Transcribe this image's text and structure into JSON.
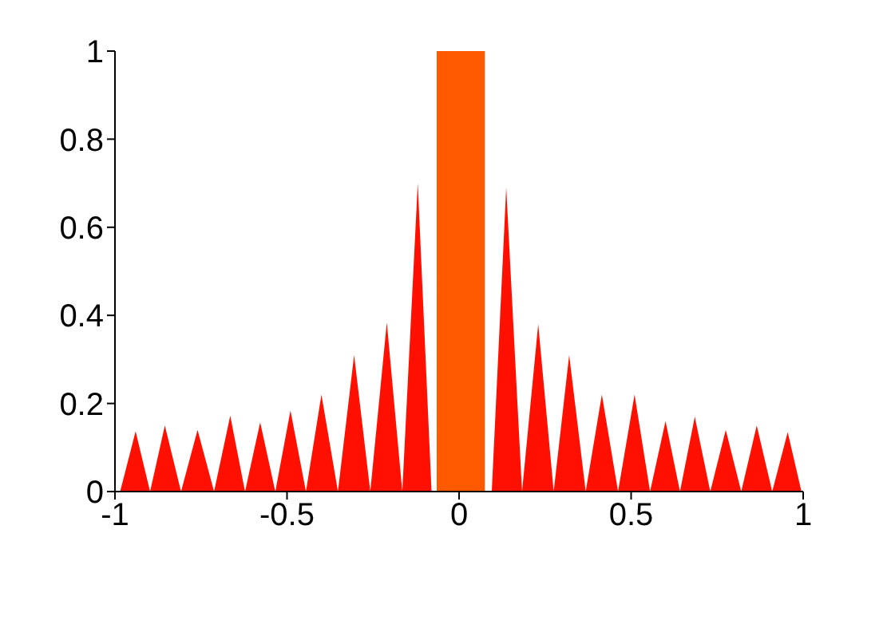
{
  "chart_data": {
    "type": "area",
    "series": [
      {
        "color": "#ff1000",
        "x": [
          -0.985,
          -0.94,
          -0.898,
          -0.855,
          -0.808,
          -0.76,
          -0.712,
          -0.665,
          -0.622,
          -0.578,
          -0.534,
          -0.49,
          -0.445,
          -0.4,
          -0.352,
          -0.305,
          -0.258,
          -0.21,
          -0.165,
          -0.12,
          -0.08,
          0.095,
          0.137,
          0.183,
          0.23,
          0.275,
          0.32,
          0.368,
          0.415,
          0.462,
          0.51,
          0.555,
          0.6,
          0.642,
          0.685,
          0.73,
          0.775,
          0.82,
          0.865,
          0.91,
          0.955,
          0.995
        ],
        "values": [
          0,
          0.137,
          0,
          0.15,
          0,
          0.14,
          0,
          0.172,
          0,
          0.157,
          0,
          0.184,
          0,
          0.22,
          0,
          0.31,
          0,
          0.384,
          0,
          0.7,
          0,
          0,
          0.69,
          0,
          0.38,
          0,
          0.31,
          0,
          0.22,
          0,
          0.22,
          0,
          0.16,
          0,
          0.17,
          0,
          0.14,
          0,
          0.15,
          0,
          0.135,
          0
        ]
      },
      {
        "color": "#ff5a00",
        "x": [
          -0.065,
          -0.065,
          0.075,
          0.075
        ],
        "values": [
          0,
          1,
          1,
          0
        ]
      }
    ],
    "xlim": [
      -1,
      1
    ],
    "xticks": [
      -1,
      -0.5,
      0,
      0.5,
      1
    ],
    "ylim": [
      0,
      1
    ],
    "yticks": [
      0,
      0.2,
      0.4,
      0.6,
      0.8,
      1
    ]
  }
}
